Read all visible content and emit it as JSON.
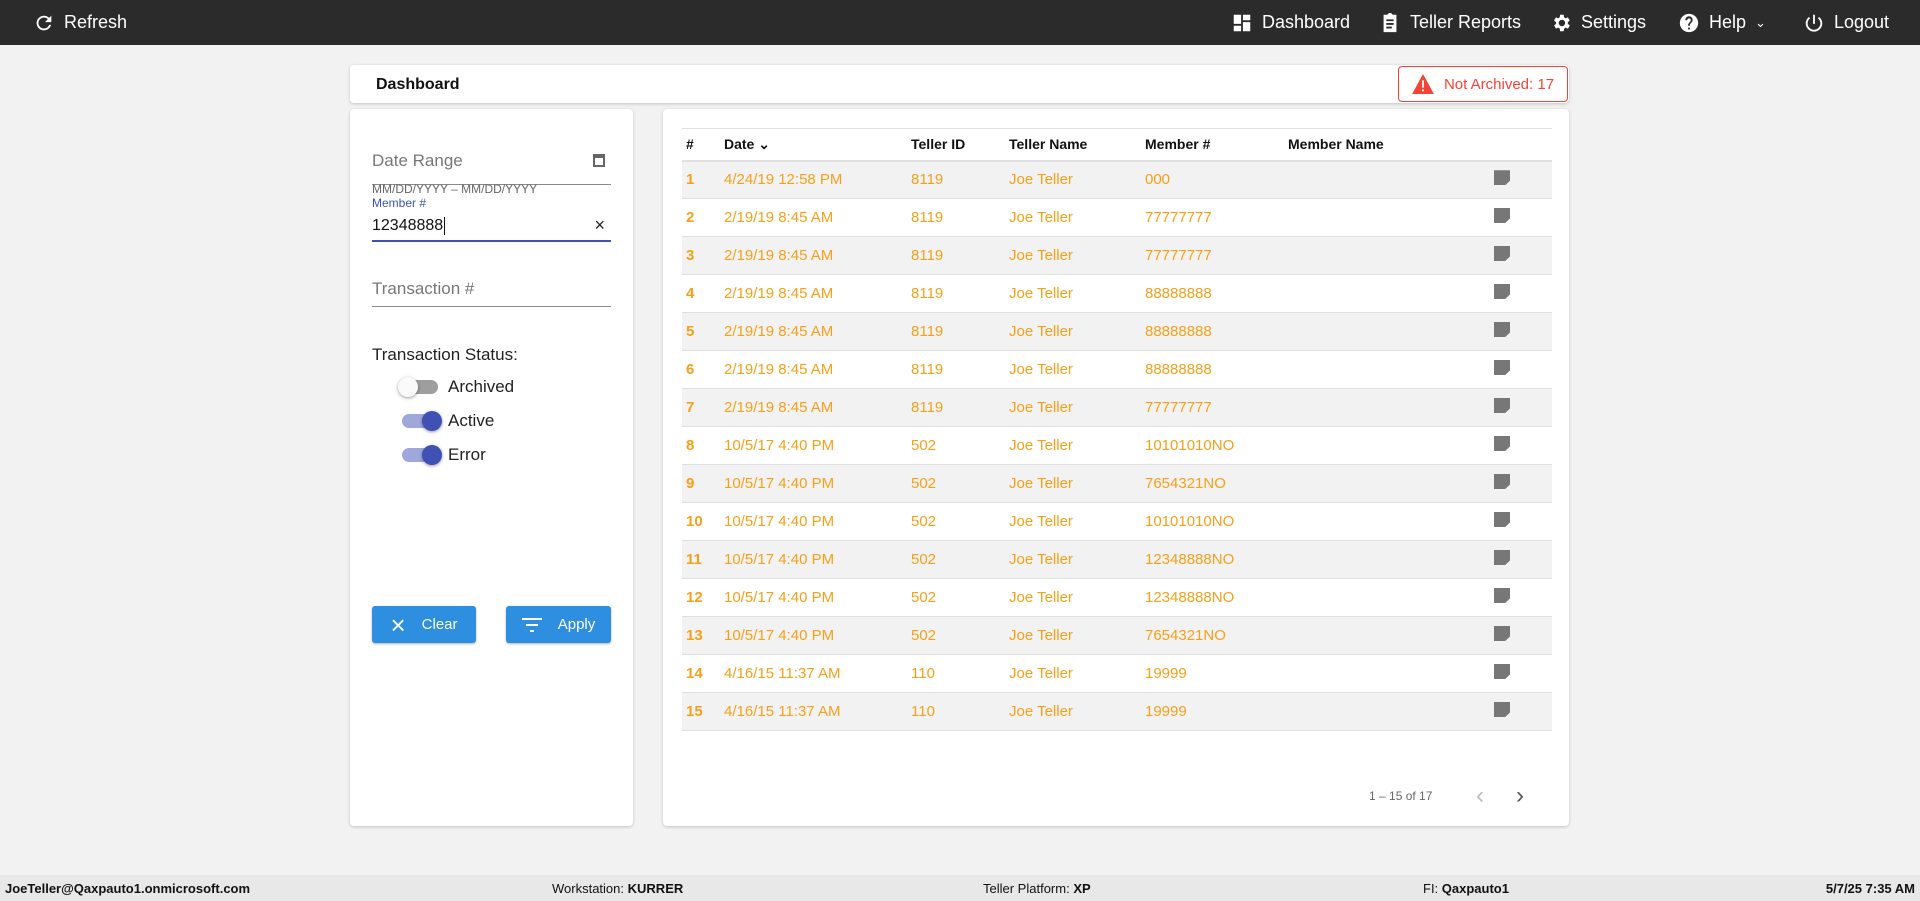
{
  "nav": {
    "refresh": "Refresh",
    "dashboard": "Dashboard",
    "teller_reports": "Teller Reports",
    "settings": "Settings",
    "help": "Help",
    "logout": "Logout"
  },
  "header": {
    "title": "Dashboard",
    "badge": "Not Archived: 17",
    "badge_color": "#f44336"
  },
  "filters": {
    "date_range_placeholder": "Date Range",
    "date_hint": "MM/DD/YYYY – MM/DD/YYYY",
    "member_label": "Member #",
    "member_value": "12348888",
    "transaction_placeholder": "Transaction #",
    "status_label": "Transaction Status:",
    "toggles": [
      {
        "label": "Archived",
        "on": false
      },
      {
        "label": "Active",
        "on": true
      },
      {
        "label": "Error",
        "on": true
      }
    ],
    "clear": "Clear",
    "apply": "Apply"
  },
  "table": {
    "columns": [
      "#",
      "Date",
      "Teller ID",
      "Teller Name",
      "Member #",
      "Member Name"
    ],
    "rows": [
      [
        "1",
        "4/24/19 12:58 PM",
        "8119",
        "Joe Teller",
        "000",
        ""
      ],
      [
        "2",
        "2/19/19 8:45 AM",
        "8119",
        "Joe Teller",
        "77777777",
        ""
      ],
      [
        "3",
        "2/19/19 8:45 AM",
        "8119",
        "Joe Teller",
        "77777777",
        ""
      ],
      [
        "4",
        "2/19/19 8:45 AM",
        "8119",
        "Joe Teller",
        "88888888",
        ""
      ],
      [
        "5",
        "2/19/19 8:45 AM",
        "8119",
        "Joe Teller",
        "88888888",
        ""
      ],
      [
        "6",
        "2/19/19 8:45 AM",
        "8119",
        "Joe Teller",
        "88888888",
        ""
      ],
      [
        "7",
        "2/19/19 8:45 AM",
        "8119",
        "Joe Teller",
        "77777777",
        ""
      ],
      [
        "8",
        "10/5/17 4:40 PM",
        "502",
        "Joe Teller",
        "10101010NO",
        ""
      ],
      [
        "9",
        "10/5/17 4:40 PM",
        "502",
        "Joe Teller",
        "7654321NO",
        ""
      ],
      [
        "10",
        "10/5/17 4:40 PM",
        "502",
        "Joe Teller",
        "10101010NO",
        ""
      ],
      [
        "11",
        "10/5/17 4:40 PM",
        "502",
        "Joe Teller",
        "12348888NO",
        ""
      ],
      [
        "12",
        "10/5/17 4:40 PM",
        "502",
        "Joe Teller",
        "12348888NO",
        ""
      ],
      [
        "13",
        "10/5/17 4:40 PM",
        "502",
        "Joe Teller",
        "7654321NO",
        ""
      ],
      [
        "14",
        "4/16/15 11:37 AM",
        "110",
        "Joe Teller",
        "19999",
        ""
      ],
      [
        "15",
        "4/16/15 11:37 AM",
        "110",
        "Joe Teller",
        "19999",
        ""
      ]
    ],
    "pagination": "1 – 15 of 17"
  },
  "footer": {
    "user": "JoeTeller@Qaxpauto1.onmicrosoft.com",
    "workstation_label": "Workstation:",
    "workstation": "KURRER",
    "platform_label": "Teller Platform:",
    "platform": "XP",
    "fi_label": "FI:",
    "fi": "Qaxpauto1",
    "datetime": "5/7/25 7:35 AM"
  },
  "colors": {
    "accent": "#3f51b5",
    "row_text": "#f5a01a",
    "button": "#2e8ee0"
  }
}
